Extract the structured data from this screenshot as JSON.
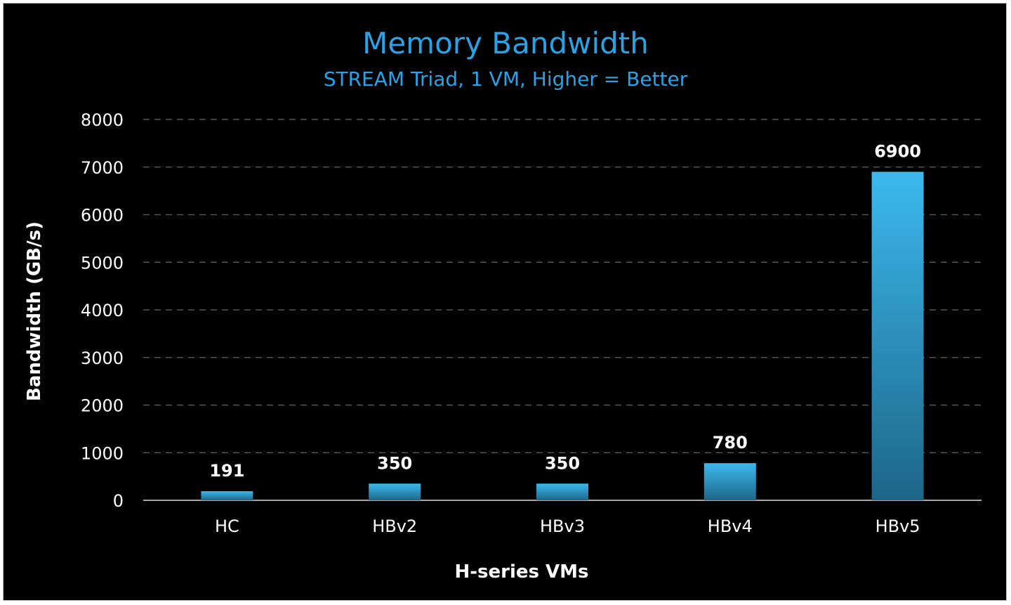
{
  "chart_data": {
    "type": "bar",
    "title": "Memory Bandwidth",
    "subtitle": "STREAM Triad, 1 VM, Higher = Better",
    "xlabel": "H-series VMs",
    "ylabel": "Bandwidth (GB/s)",
    "categories": [
      "HC",
      "HBv2",
      "HBv3",
      "HBv4",
      "HBv5"
    ],
    "values": [
      191,
      350,
      350,
      780,
      6900
    ],
    "data_labels": [
      "191",
      "350",
      "350",
      "780",
      "6900"
    ],
    "ylim": [
      0,
      8000
    ],
    "yticks": [
      0,
      1000,
      2000,
      3000,
      4000,
      5000,
      6000,
      7000,
      8000
    ],
    "grid": true,
    "legend": "none",
    "colors": {
      "background": "#000000",
      "title": "#2aa3e6",
      "bar_top": "#3cb9ee",
      "bar_bottom": "#1d6688",
      "text": "#ffffff",
      "grid": "#555555"
    }
  }
}
